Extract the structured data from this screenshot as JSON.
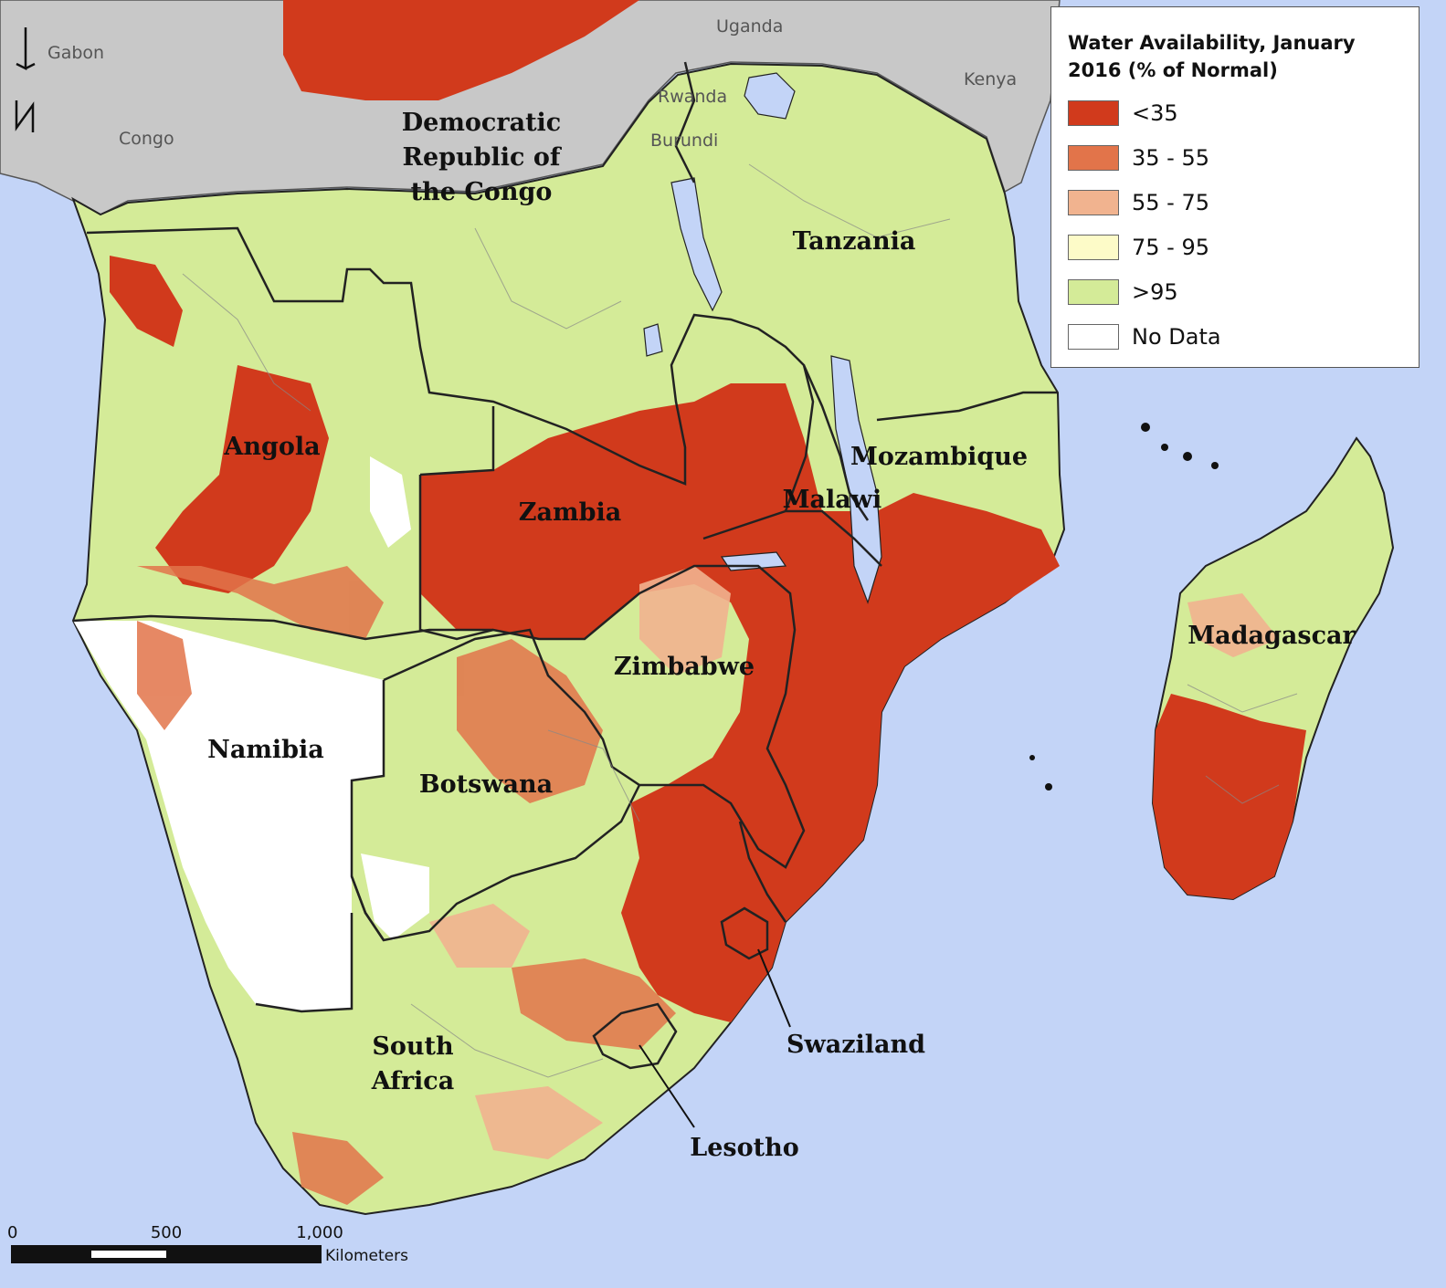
{
  "legend": {
    "title": "Water Availability, January 2016 (% of Normal)",
    "items": [
      {
        "label": "<35",
        "color": "#d13a1c"
      },
      {
        "label": "35 - 55",
        "color": "#e2744a"
      },
      {
        "label": "55 - 75",
        "color": "#f1b38f"
      },
      {
        "label": "75 - 95",
        "color": "#fdfbc8"
      },
      {
        "label": ">95",
        "color": "#d4eb98"
      },
      {
        "label": "No Data",
        "color": "#ffffff"
      }
    ]
  },
  "countries": {
    "drc": "Democratic Republic of the Congo",
    "drc_lines": [
      "Democratic",
      "Republic of",
      "the Congo"
    ],
    "tanzania": "Tanzania",
    "angola": "Angola",
    "zambia": "Zambia",
    "malawi": "Malawi",
    "mozambique": "Mozambique",
    "zimbabwe": "Zimbabwe",
    "namibia": "Namibia",
    "botswana": "Botswana",
    "south_africa_lines": [
      "South",
      "Africa"
    ],
    "madagascar": "Madagascar",
    "swaziland": "Swaziland",
    "lesotho": "Lesotho"
  },
  "neighbors": {
    "gabon": "Gabon",
    "congo": "Congo",
    "uganda": "Uganda",
    "kenya": "Kenya",
    "rwanda": "Rwanda",
    "burundi": "Burundi"
  },
  "scale_bar": {
    "ticks": [
      "0",
      "500",
      "1,000"
    ],
    "units": "Kilometers"
  },
  "colors": {
    "ocean": "#c3d4f7",
    "land_other": "#c8c8c8",
    "lake": "#c3d4f7",
    "border": "#222222"
  }
}
